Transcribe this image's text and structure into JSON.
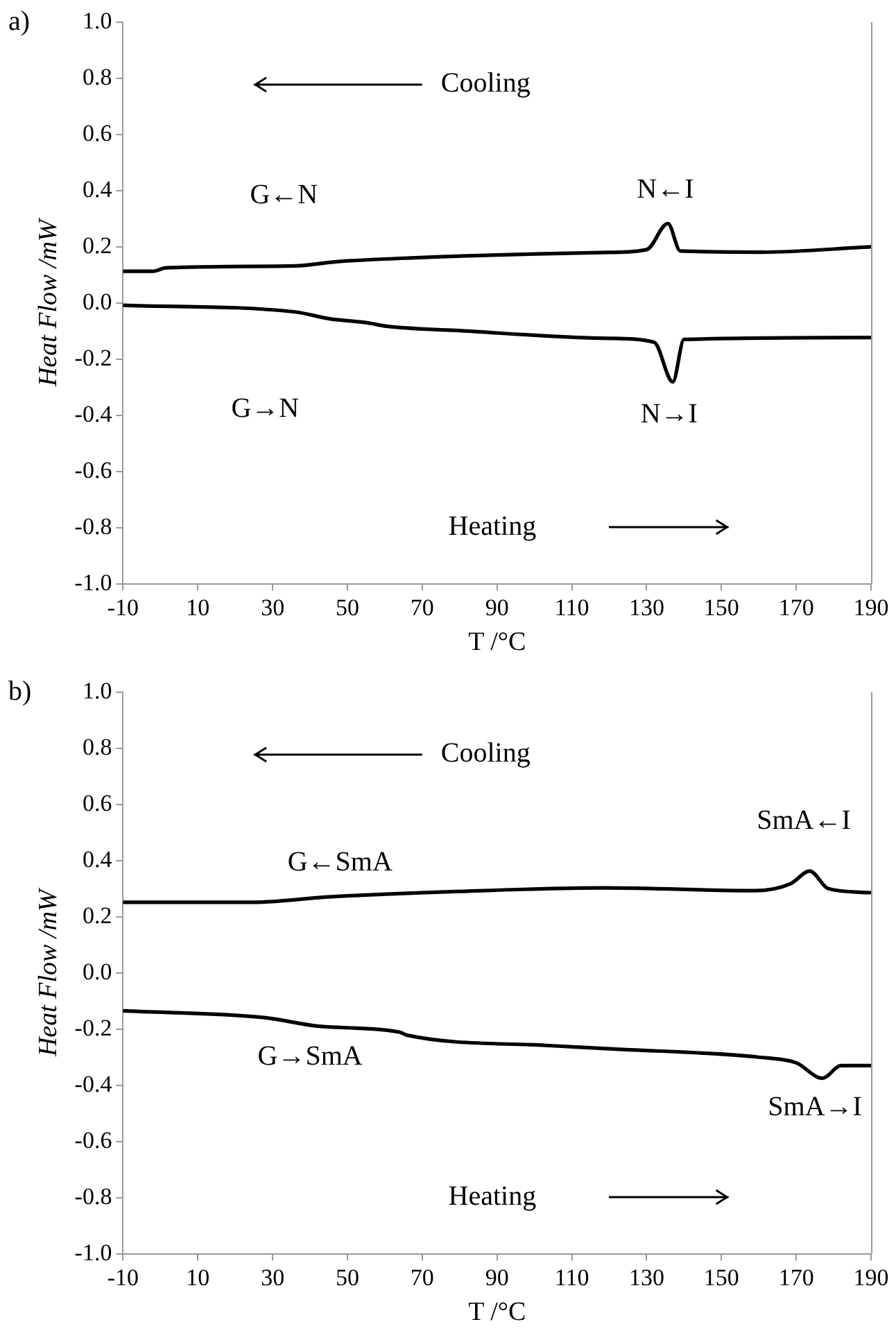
{
  "chart_data": [
    {
      "type": "line",
      "title": "a)",
      "xlabel": "T /°C",
      "ylabel": "Heat Flow /mW",
      "xlim": [
        -10,
        190
      ],
      "xticks": [
        -10,
        10,
        30,
        50,
        70,
        90,
        110,
        130,
        150,
        170,
        190
      ],
      "ylim": [
        -1.0,
        1.0
      ],
      "yticks": [
        {
          "value": -1,
          "label": "-1.0"
        },
        -0.8,
        -0.6,
        -0.4,
        -0.2,
        {
          "value": 0,
          "label": "0.0"
        },
        0.2,
        0.4,
        0.6,
        0.8,
        {
          "value": 1,
          "label": "1.0"
        }
      ],
      "grid": false,
      "legend": false,
      "marker": "none",
      "line_style": "solid",
      "annotations": [
        "Cooling",
        "Heating",
        "G←N",
        "N←I",
        "G→N",
        "N→I"
      ],
      "series": [
        {
          "color": "#000000",
          "x": [
            -10,
            -2,
            1.5,
            36,
            47,
            66,
            120,
            130,
            135.7,
            139,
            160.7,
            190
          ],
          "values": [
            0.113,
            0.113,
            0.125,
            0.132,
            0.147,
            0.16,
            0.18,
            0.19,
            0.283,
            0.185,
            0.181,
            0.2
          ]
        },
        {
          "color": "#000000",
          "x": [
            -10,
            36,
            45.5,
            55,
            60.5,
            79,
            120,
            132,
            137,
            140,
            190
          ],
          "values": [
            -0.008,
            -0.032,
            -0.057,
            -0.07,
            -0.083,
            -0.098,
            -0.126,
            -0.14,
            -0.281,
            -0.13,
            -0.123
          ]
        }
      ]
    },
    {
      "type": "line",
      "title": "b)",
      "xlabel": "T /°C",
      "ylabel": "Heat Flow /mW",
      "xlim": [
        -10,
        190
      ],
      "xticks": [
        -10,
        10,
        30,
        50,
        70,
        90,
        110,
        130,
        150,
        170,
        190
      ],
      "ylim": [
        -1.0,
        1.0
      ],
      "yticks": [
        {
          "value": -1,
          "label": "-1.0"
        },
        -0.8,
        -0.6,
        -0.4,
        -0.2,
        {
          "value": 0,
          "label": "0.0"
        },
        0.2,
        0.4,
        0.6,
        0.8,
        {
          "value": 1,
          "label": "1.0"
        }
      ],
      "grid": false,
      "legend": false,
      "marker": "none",
      "line_style": "solid",
      "annotations": [
        "Cooling",
        "Heating",
        "G←SmA",
        "SmA←I",
        "G→SmA",
        "SmA→I"
      ],
      "series": [
        {
          "color": "#000000",
          "x": [
            -10,
            25,
            45,
            79,
            119,
            159,
            168.5,
            173.6,
            178.6,
            190
          ],
          "values": [
            0.252,
            0.252,
            0.271,
            0.29,
            0.303,
            0.293,
            0.318,
            0.363,
            0.3,
            0.286
          ]
        },
        {
          "color": "#000000",
          "x": [
            -10,
            27.8,
            42.5,
            64,
            66,
            103,
            120,
            160,
            170,
            177,
            182,
            190
          ],
          "values": [
            -0.135,
            -0.159,
            -0.19,
            -0.211,
            -0.222,
            -0.258,
            -0.27,
            -0.3,
            -0.32,
            -0.375,
            -0.33,
            -0.33
          ]
        }
      ]
    }
  ]
}
